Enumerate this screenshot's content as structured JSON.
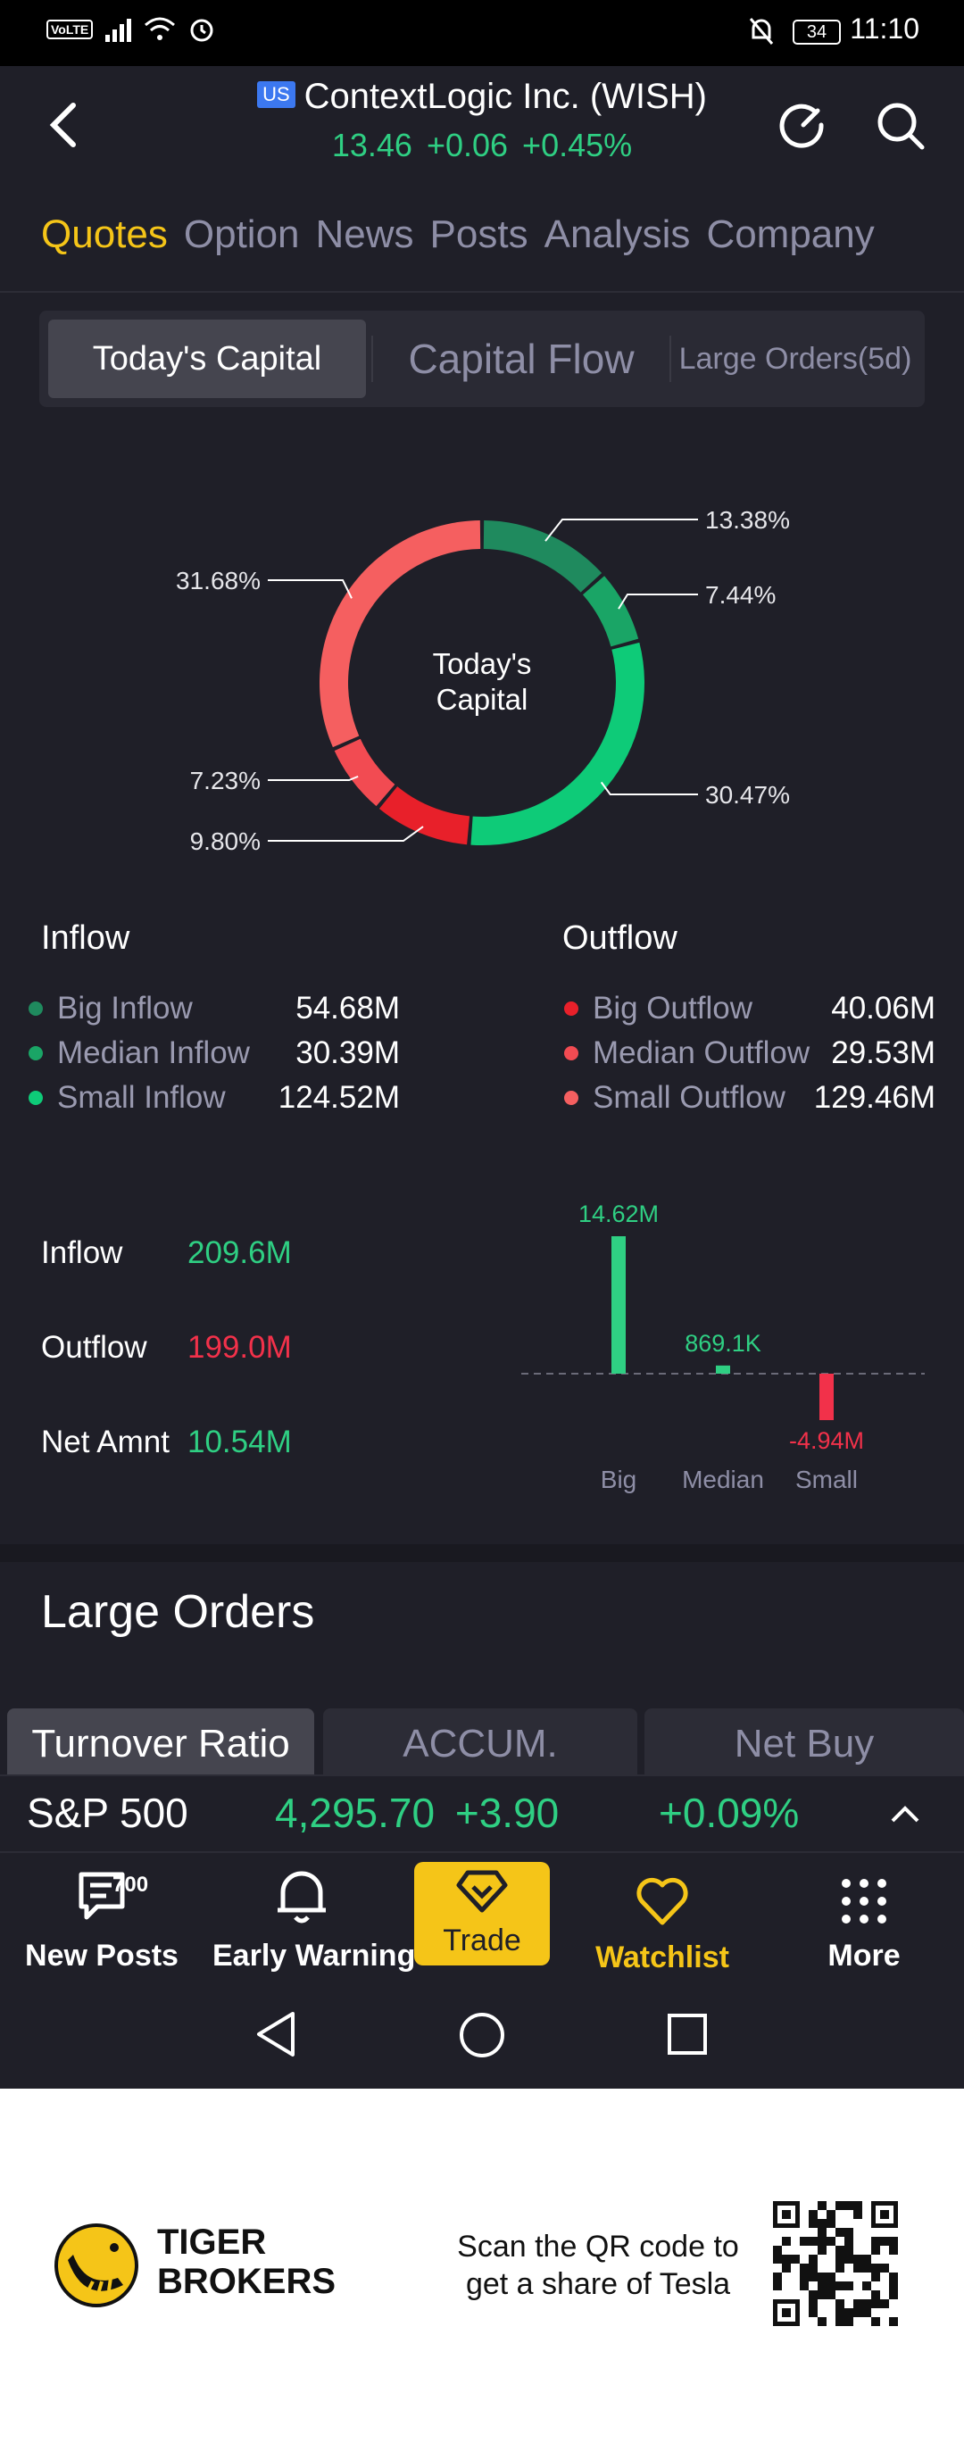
{
  "status": {
    "time": "11:10",
    "battery": "34",
    "volte": "VoLTE"
  },
  "header": {
    "badge": "US",
    "title": "ContextLogic Inc. (WISH)",
    "price": "13.46",
    "change": "+0.06",
    "change_pct": "+0.45%"
  },
  "tabs": [
    "Quotes",
    "Option",
    "News",
    "Posts",
    "Analysis",
    "Company"
  ],
  "segment": {
    "tab1": "Today's Capital",
    "tab2": "Capital Flow",
    "tab3": "Large Orders(5d)"
  },
  "chart_data": {
    "type": "pie",
    "center_label_1": "Today's",
    "center_label_2": "Capital",
    "slices": [
      {
        "label": "Big Inflow",
        "value": 13.38,
        "text": "13.38%",
        "color": "#1f8a5e"
      },
      {
        "label": "Median Inflow",
        "value": 7.44,
        "text": "7.44%",
        "color": "#1aa566"
      },
      {
        "label": "Small Inflow",
        "value": 30.47,
        "text": "30.47%",
        "color": "#0ecb78"
      },
      {
        "label": "Big Outflow",
        "value": 9.8,
        "text": "9.80%",
        "color": "#e8202a"
      },
      {
        "label": "Median Outflow",
        "value": 7.23,
        "text": "7.23%",
        "color": "#f24b52"
      },
      {
        "label": "Small Outflow",
        "value": 31.68,
        "text": "31.68%",
        "color": "#f55f60"
      }
    ]
  },
  "inflow": {
    "title": "Inflow",
    "items": [
      {
        "label": "Big Inflow",
        "value": "54.68M",
        "color": "#1f8a5e"
      },
      {
        "label": "Median Inflow",
        "value": "30.39M",
        "color": "#1aa566"
      },
      {
        "label": "Small Inflow",
        "value": "124.52M",
        "color": "#0ecb78"
      }
    ]
  },
  "outflow": {
    "title": "Outflow",
    "items": [
      {
        "label": "Big Outflow",
        "value": "40.06M",
        "color": "#e8202a"
      },
      {
        "label": "Median Outflow",
        "value": "29.53M",
        "color": "#f24b52"
      },
      {
        "label": "Small Outflow",
        "value": "129.46M",
        "color": "#f55f60"
      }
    ]
  },
  "summary": {
    "inflow_label": "Inflow",
    "inflow_value": "209.6M",
    "outflow_label": "Outflow",
    "outflow_value": "199.0M",
    "net_label": "Net Amnt",
    "net_value": "10.54M"
  },
  "net_chart": {
    "type": "bar",
    "categories": [
      "Big",
      "Median",
      "Small"
    ],
    "values": [
      14.62,
      0.8691,
      -4.94
    ],
    "labels": [
      "14.62M",
      "869.1K",
      "-4.94M"
    ],
    "units": "M"
  },
  "large_orders": {
    "title": "Large Orders",
    "tabs": [
      "Turnover Ratio",
      "ACCUM.",
      "Net Buy"
    ]
  },
  "index_bar": {
    "name": "S&P 500",
    "value": "4,295.70",
    "change": "+3.90",
    "pct": "+0.09%"
  },
  "nav": {
    "posts_label": "New Posts",
    "posts_count": "700",
    "warning_label": "Early Warning",
    "trade_label": "Trade",
    "watchlist_label": "Watchlist",
    "more_label": "More"
  },
  "footer": {
    "brand_line1": "TIGER",
    "brand_line2": "BROKERS",
    "scan_line1": "Scan the QR code to",
    "scan_line2": "get a share of Tesla"
  },
  "colors": {
    "accent": "#f5c518",
    "up": "#2fcf83",
    "down": "#f2314a",
    "bg": "#1f1f28"
  }
}
